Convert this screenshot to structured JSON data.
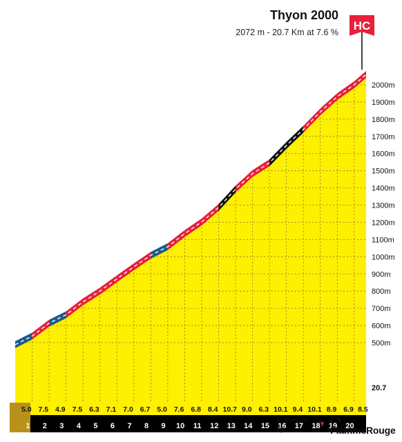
{
  "header": {
    "title": "Thyon 2000",
    "subtitle": "2072 m - 20.7 Km at 7.6 %",
    "category": "HC"
  },
  "footer": {
    "powered_label": "Powered by",
    "brand_name": "La FlammeRouge"
  },
  "colors": {
    "fill": "#ffef00",
    "grade_low": "#1f5a8a",
    "grade_mid": "#e8203a",
    "grade_high": "#111111",
    "category_flag": "#e8203a",
    "base": "#b9911a"
  },
  "chart_data": {
    "type": "area",
    "title": "Thyon 2000",
    "subtitle": "2072 m - 20.7 Km at 7.6 %",
    "xlabel": "",
    "ylabel": "",
    "x_range": [
      0,
      20.7
    ],
    "y_range": [
      500,
      2072
    ],
    "y_ticks": [
      "2000m",
      "1900m",
      "1800m",
      "1700m",
      "1600m",
      "1500m",
      "1400m",
      "1300m",
      "1200m",
      "1100m",
      "1000m",
      "900m",
      "800m",
      "700m",
      "600m",
      "500m"
    ],
    "x_ticks": [
      "1",
      "2",
      "3",
      "4",
      "5",
      "6",
      "7",
      "8",
      "9",
      "10",
      "11",
      "12",
      "13",
      "14",
      "15",
      "16",
      "17",
      "18",
      "19",
      "20"
    ],
    "final_distance_label": "20.7",
    "km_gradients": [
      "5.0",
      "7.5",
      "4.9",
      "7.5",
      "6.3",
      "7.1",
      "7.0",
      "6.7",
      "5.0",
      "7.6",
      "6.8",
      "8.4",
      "10.7",
      "9.0",
      "6.3",
      "10.1",
      "9.4",
      "10.1",
      "8.9",
      "6.9",
      "8.5"
    ],
    "gradient_colors": [
      "low",
      "mid",
      "low",
      "mid",
      "mid",
      "mid",
      "mid",
      "mid",
      "low",
      "mid",
      "mid",
      "mid",
      "high",
      "mid",
      "mid",
      "high",
      "high",
      "mid",
      "mid",
      "mid",
      "mid"
    ],
    "grid": true,
    "summit_altitude_m": 2072,
    "length_km": 20.7,
    "avg_gradient_pct": 7.6,
    "category": "HC"
  }
}
